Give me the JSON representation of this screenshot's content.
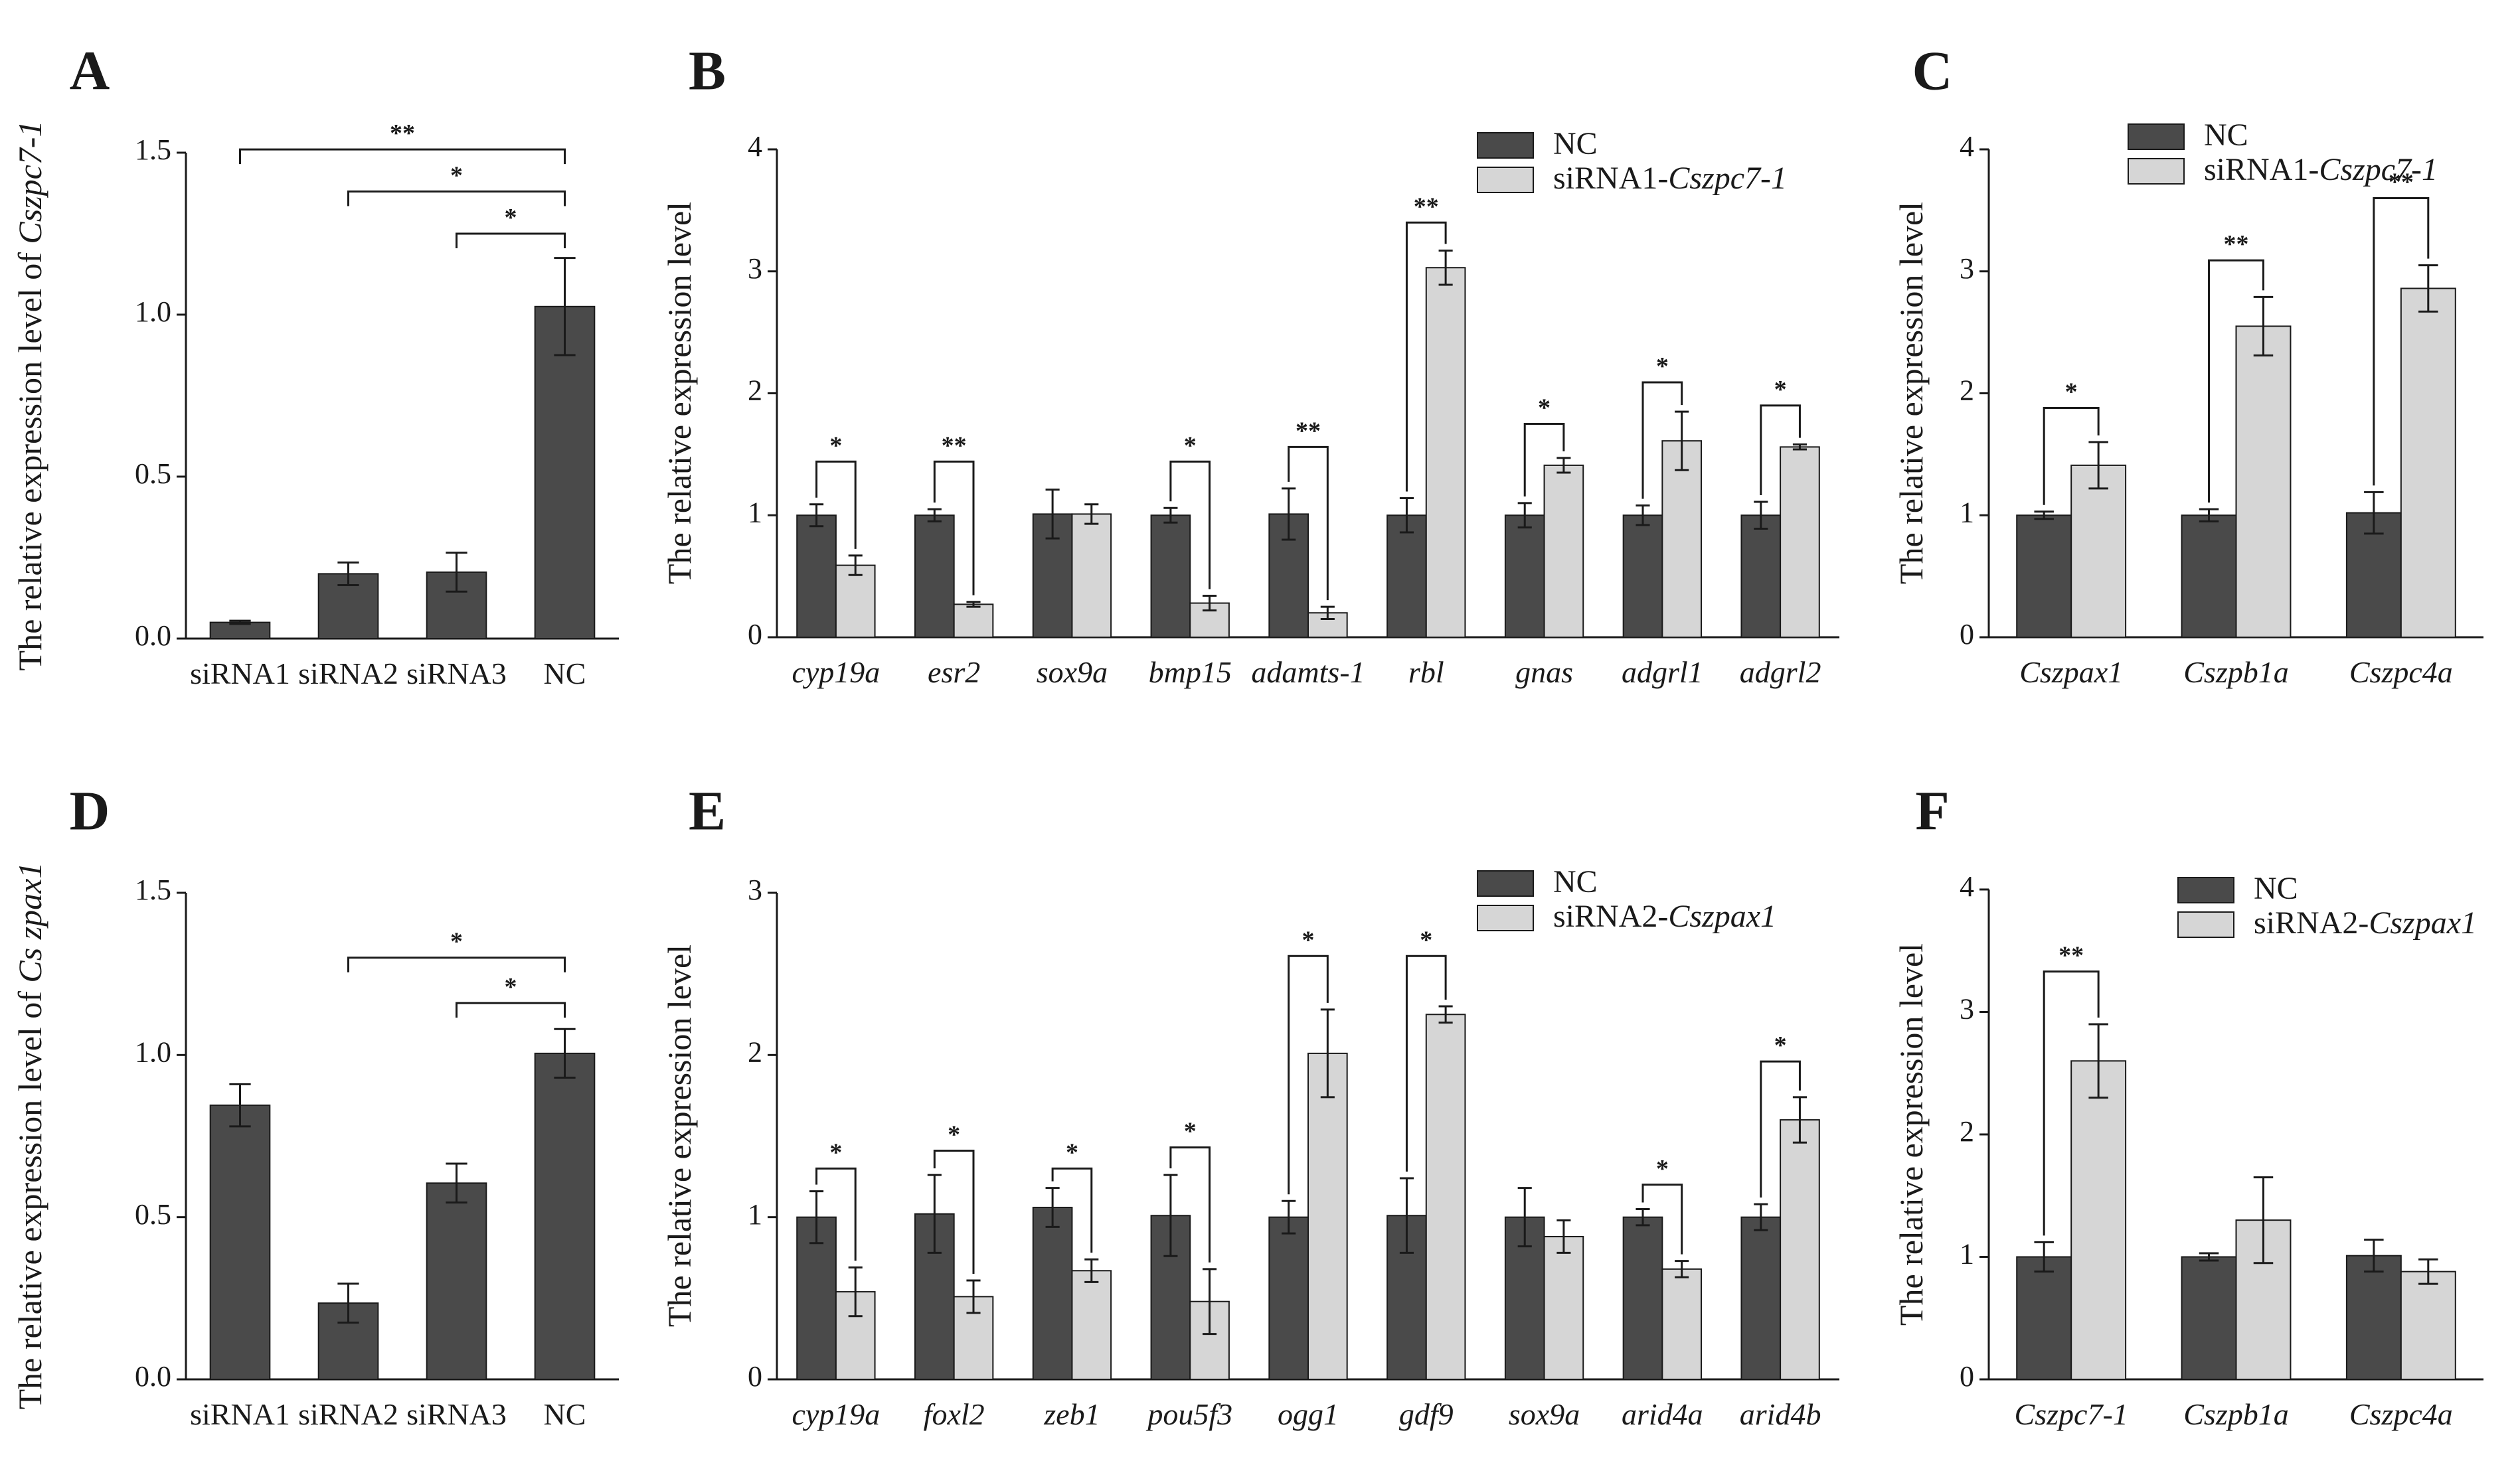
{
  "colors": {
    "dark": "#4a4a4a",
    "light": "#d6d6d6",
    "ink": "#1a1a1a"
  },
  "chart_data": [
    {
      "id": "A",
      "panel_label": "A",
      "type": "bar",
      "ylabel_prefix": "The  relative expression level of ",
      "ylabel_gene": "Cszpc7-1",
      "ylim": [
        0,
        1.5
      ],
      "yticks": [
        "0.0",
        "0.5",
        "1.0",
        "1.5"
      ],
      "categories": [
        "siRNA1",
        "siRNA2",
        "siRNA3",
        "NC"
      ],
      "categories_italic": false,
      "series": [
        {
          "name": "",
          "color": "dark",
          "values": [
            0.05,
            0.2,
            0.205,
            1.025
          ],
          "errors": [
            0.005,
            0.035,
            0.06,
            0.15
          ]
        }
      ],
      "significance": [
        {
          "from": 0,
          "to": 3,
          "label": "**",
          "level": 1.51
        },
        {
          "from": 1,
          "to": 3,
          "label": "*",
          "level": 1.38
        },
        {
          "from": 2,
          "to": 3,
          "label": "*",
          "level": 1.25
        }
      ]
    },
    {
      "id": "B",
      "panel_label": "B",
      "type": "bar",
      "ylabel": "The  relative expression level",
      "ylim": [
        0,
        4
      ],
      "yticks": [
        "0",
        "1",
        "2",
        "3",
        "4"
      ],
      "categories": [
        "cyp19a",
        "esr2",
        "sox9a",
        "bmp15",
        "adamts-1",
        "rbl",
        "gnas",
        "adgrl1",
        "adgrl2"
      ],
      "categories_italic": true,
      "series": [
        {
          "name": "NC",
          "color": "dark",
          "values": [
            1.0,
            1.0,
            1.01,
            1.0,
            1.01,
            1.0,
            1.0,
            1.0,
            1.0
          ],
          "errors": [
            0.09,
            0.05,
            0.2,
            0.06,
            0.21,
            0.14,
            0.1,
            0.08,
            0.11
          ]
        },
        {
          "name": "siRNA1-Cszpc7-1",
          "color": "light",
          "values": [
            0.59,
            0.27,
            1.01,
            0.28,
            0.2,
            3.03,
            1.41,
            1.61,
            1.56
          ],
          "errors": [
            0.08,
            0.02,
            0.08,
            0.06,
            0.05,
            0.14,
            0.06,
            0.24,
            0.02
          ]
        }
      ],
      "legend": [
        {
          "text": "NC",
          "italic_part": ""
        },
        {
          "text": "siRNA1-",
          "italic_part": "Cszpc7-1"
        }
      ],
      "significance": [
        {
          "cat": 0,
          "label": "*",
          "level": 1.44
        },
        {
          "cat": 1,
          "label": "**",
          "level": 1.44
        },
        {
          "cat": 3,
          "label": "*",
          "level": 1.44
        },
        {
          "cat": 4,
          "label": "**",
          "level": 1.56
        },
        {
          "cat": 5,
          "label": "**",
          "level": 3.4
        },
        {
          "cat": 6,
          "label": "*",
          "level": 1.75
        },
        {
          "cat": 7,
          "label": "*",
          "level": 2.09
        },
        {
          "cat": 8,
          "label": "*",
          "level": 1.9
        }
      ]
    },
    {
      "id": "C",
      "panel_label": "C",
      "type": "bar",
      "ylabel": "The  relative expression level",
      "ylim": [
        0,
        4
      ],
      "yticks": [
        "0",
        "1",
        "2",
        "3",
        "4"
      ],
      "categories": [
        "Cszpax1",
        "Cszpb1a",
        "Cszpc4a"
      ],
      "categories_italic": true,
      "series": [
        {
          "name": "NC",
          "color": "dark",
          "values": [
            1.0,
            1.0,
            1.02
          ],
          "errors": [
            0.03,
            0.05,
            0.17
          ]
        },
        {
          "name": "siRNA1-Cszpc7-1",
          "color": "light",
          "values": [
            1.41,
            2.55,
            2.86
          ],
          "errors": [
            0.19,
            0.24,
            0.19
          ]
        }
      ],
      "legend": [
        {
          "text": "NC",
          "italic_part": ""
        },
        {
          "text": "siRNA1-",
          "italic_part": "Cszpc7-1"
        }
      ],
      "significance": [
        {
          "cat": 0,
          "label": "*",
          "level": 1.88
        },
        {
          "cat": 1,
          "label": "**",
          "level": 3.09
        },
        {
          "cat": 2,
          "label": "**",
          "level": 3.6
        }
      ]
    },
    {
      "id": "D",
      "panel_label": "D",
      "type": "bar",
      "ylabel_prefix": "The  relative expression level of ",
      "ylabel_gene": "Cs zpax1",
      "ylim": [
        0,
        1.5
      ],
      "yticks": [
        "0.0",
        "0.5",
        "1.0",
        "1.5"
      ],
      "categories": [
        "siRNA1",
        "siRNA2",
        "siRNA3",
        "NC"
      ],
      "categories_italic": false,
      "series": [
        {
          "name": "",
          "color": "dark",
          "values": [
            0.845,
            0.235,
            0.605,
            1.005
          ],
          "errors": [
            0.065,
            0.06,
            0.06,
            0.075
          ]
        }
      ],
      "significance": [
        {
          "from": 1,
          "to": 3,
          "label": "*",
          "level": 1.3
        },
        {
          "from": 2,
          "to": 3,
          "label": "*",
          "level": 1.16
        }
      ]
    },
    {
      "id": "E",
      "panel_label": "E",
      "type": "bar",
      "ylabel": "The  relative expression level",
      "ylim": [
        0,
        3
      ],
      "yticks": [
        "0",
        "1",
        "2",
        "3"
      ],
      "categories": [
        "cyp19a",
        "foxl2",
        "zeb1",
        "pou5f3",
        "ogg1",
        "gdf9",
        "sox9a",
        "arid4a",
        "arid4b"
      ],
      "categories_italic": true,
      "series": [
        {
          "name": "NC",
          "color": "dark",
          "values": [
            1.0,
            1.02,
            1.06,
            1.01,
            1.0,
            1.01,
            1.0,
            1.0,
            1.0
          ],
          "errors": [
            0.16,
            0.24,
            0.12,
            0.25,
            0.1,
            0.23,
            0.18,
            0.05,
            0.08
          ]
        },
        {
          "name": "siRNA2-Cszpax1",
          "color": "light",
          "values": [
            0.54,
            0.51,
            0.67,
            0.48,
            2.01,
            2.25,
            0.88,
            0.68,
            1.6
          ],
          "errors": [
            0.15,
            0.1,
            0.07,
            0.2,
            0.27,
            0.05,
            0.1,
            0.05,
            0.14
          ]
        }
      ],
      "legend": [
        {
          "text": "NC",
          "italic_part": ""
        },
        {
          "text": "siRNA2-",
          "italic_part": "Cszpax1"
        }
      ],
      "significance": [
        {
          "cat": 0,
          "label": "*",
          "level": 1.3
        },
        {
          "cat": 1,
          "label": "*",
          "level": 1.41
        },
        {
          "cat": 2,
          "label": "*",
          "level": 1.3
        },
        {
          "cat": 3,
          "label": "*",
          "level": 1.43
        },
        {
          "cat": 4,
          "label": "*",
          "level": 2.61
        },
        {
          "cat": 5,
          "label": "*",
          "level": 2.61
        },
        {
          "cat": 7,
          "label": "*",
          "level": 1.2
        },
        {
          "cat": 8,
          "label": "*",
          "level": 1.96
        }
      ]
    },
    {
      "id": "F",
      "panel_label": "F",
      "type": "bar",
      "ylabel": "The  relative expression level",
      "ylim": [
        0,
        4
      ],
      "yticks": [
        "0",
        "1",
        "2",
        "3",
        "4"
      ],
      "categories": [
        "Cszpc7-1",
        "Cszpb1a",
        "Cszpc4a"
      ],
      "categories_italic": true,
      "series": [
        {
          "name": "NC",
          "color": "dark",
          "values": [
            1.0,
            1.0,
            1.01
          ],
          "errors": [
            0.12,
            0.03,
            0.13
          ]
        },
        {
          "name": "siRNA2-Cszpax1",
          "color": "light",
          "values": [
            2.6,
            1.3,
            0.88
          ],
          "errors": [
            0.3,
            0.35,
            0.1
          ]
        }
      ],
      "legend": [
        {
          "text": "NC",
          "italic_part": ""
        },
        {
          "text": "siRNA2-",
          "italic_part": "Cszpax1"
        }
      ],
      "significance": [
        {
          "cat": 0,
          "label": "**",
          "level": 3.33
        }
      ]
    }
  ]
}
